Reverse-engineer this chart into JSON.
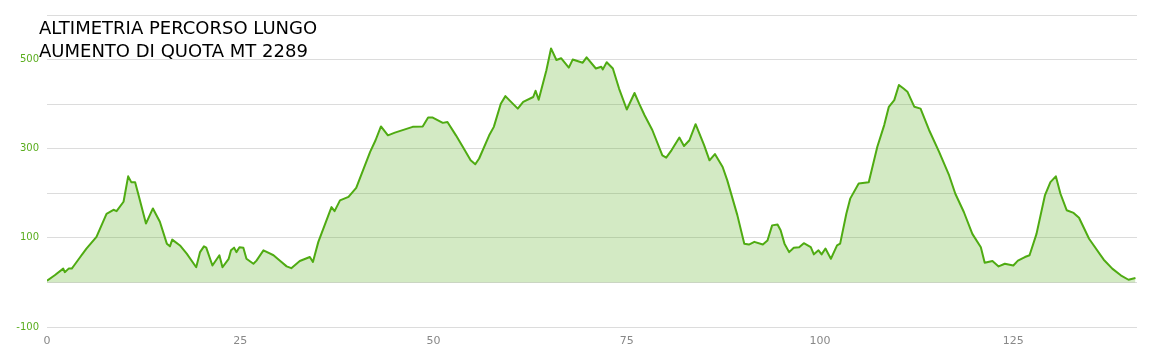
{
  "chart_data": {
    "type": "area",
    "title": "ALTIMETRIA PERCORSO LUNGO\nAUMENTO DI QUOTA MT 2289",
    "x": [
      0,
      1.0,
      2.1,
      2.3,
      2.8,
      3.2,
      3.5,
      4.3,
      5.1,
      6.4,
      7.7,
      8.6,
      9.0,
      9.9,
      10.5,
      10.9,
      11.4,
      11.9,
      12.8,
      13.7,
      14.6,
      15.5,
      15.9,
      16.2,
      17.2,
      18.1,
      19.3,
      19.8,
      20.3,
      20.6,
      21.4,
      22.3,
      22.7,
      23.5,
      23.8,
      24.2,
      24.5,
      24.9,
      25.4,
      25.8,
      26.7,
      27.1,
      28.0,
      29.3,
      30.1,
      31.0,
      31.6,
      32.7,
      34.0,
      34.4,
      35.1,
      36.8,
      37.2,
      37.9,
      39.0,
      40.0,
      41.8,
      42.5,
      43.2,
      44.1,
      45.0,
      47.3,
      48.6,
      49.3,
      49.9,
      51.2,
      51.8,
      52.9,
      53.8,
      54.8,
      55.4,
      55.9,
      57.2,
      57.8,
      58.7,
      59.3,
      59.8,
      60.9,
      61.6,
      62.9,
      63.2,
      63.6,
      64.6,
      65.2,
      65.9,
      66.5,
      67.5,
      68.0,
      69.3,
      69.8,
      71.0,
      71.7,
      71.9,
      72.4,
      73.2,
      74.0,
      75.0,
      76.0,
      76.6,
      77.3,
      78.3,
      79.6,
      80.1,
      80.8,
      81.8,
      82.4,
      83.1,
      83.9,
      85.0,
      85.7,
      86.4,
      87.4,
      88.0,
      89.3,
      90.2,
      90.8,
      91.5,
      92.6,
      93.2,
      93.8,
      94.5,
      94.9,
      95.4,
      96.0,
      96.6,
      97.3,
      97.9,
      98.8,
      99.2,
      99.8,
      100.2,
      100.7,
      101.4,
      102.2,
      102.6,
      103.4,
      103.9,
      105.0,
      106.3,
      107.4,
      108.3,
      108.9,
      109.6,
      110.2,
      110.8,
      111.3,
      112.2,
      113.0,
      114.1,
      115.4,
      116.7,
      117.5,
      118.6,
      119.7,
      120.8,
      121.3,
      122.3,
      123.1,
      123.9,
      125.0,
      125.6,
      126.5,
      127.1,
      128.0,
      129.1,
      129.8,
      130.5,
      131.1,
      131.9,
      132.8,
      133.5,
      134.8,
      136.7,
      137.8,
      138.9,
      139.9,
      140.8
    ],
    "series": [
      {
        "color": "#4fab12",
        "values": [
          4,
          16,
          31,
          23,
          31,
          31,
          38,
          57,
          76,
          102,
          154,
          163,
          160,
          181,
          238,
          225,
          225,
          192,
          132,
          166,
          136,
          87,
          81,
          96,
          83,
          64,
          34,
          68,
          81,
          78,
          38,
          61,
          34,
          53,
          72,
          78,
          68,
          79,
          78,
          53,
          42,
          49,
          72,
          61,
          49,
          36,
          32,
          48,
          57,
          46,
          91,
          169,
          160,
          184,
          192,
          212,
          293,
          319,
          350,
          330,
          336,
          349,
          350,
          370,
          370,
          358,
          360,
          330,
          304,
          274,
          265,
          278,
          330,
          349,
          401,
          418,
          409,
          390,
          405,
          416,
          430,
          410,
          476,
          525,
          499,
          503,
          482,
          500,
          493,
          505,
          480,
          484,
          478,
          494,
          480,
          435,
          388,
          425,
          401,
          375,
          342,
          285,
          280,
          297,
          325,
          306,
          319,
          355,
          308,
          274,
          288,
          259,
          229,
          151,
          87,
          85,
          91,
          85,
          94,
          128,
          130,
          117,
          87,
          68,
          78,
          79,
          88,
          79,
          63,
          72,
          63,
          76,
          53,
          83,
          87,
          154,
          188,
          222,
          225,
          304,
          353,
          394,
          409,
          443,
          435,
          428,
          394,
          390,
          342,
          293,
          240,
          199,
          158,
          109,
          79,
          44,
          48,
          36,
          42,
          38,
          49,
          57,
          61,
          109,
          196,
          225,
          238,
          199,
          162,
          156,
          145,
          98,
          51,
          31,
          16,
          6,
          10
        ]
      }
    ],
    "xlim": [
      0,
      141
    ],
    "xticks": [
      0,
      25,
      50,
      75,
      100,
      125
    ],
    "ylim": [
      -100,
      600
    ],
    "yticks": [
      -100,
      {
        "value": 0,
        "label": null
      },
      100,
      {
        "value": 200,
        "label": null
      },
      300,
      {
        "value": 400,
        "label": null
      },
      500,
      {
        "value": 600,
        "label": null
      }
    ],
    "grid": "y"
  }
}
